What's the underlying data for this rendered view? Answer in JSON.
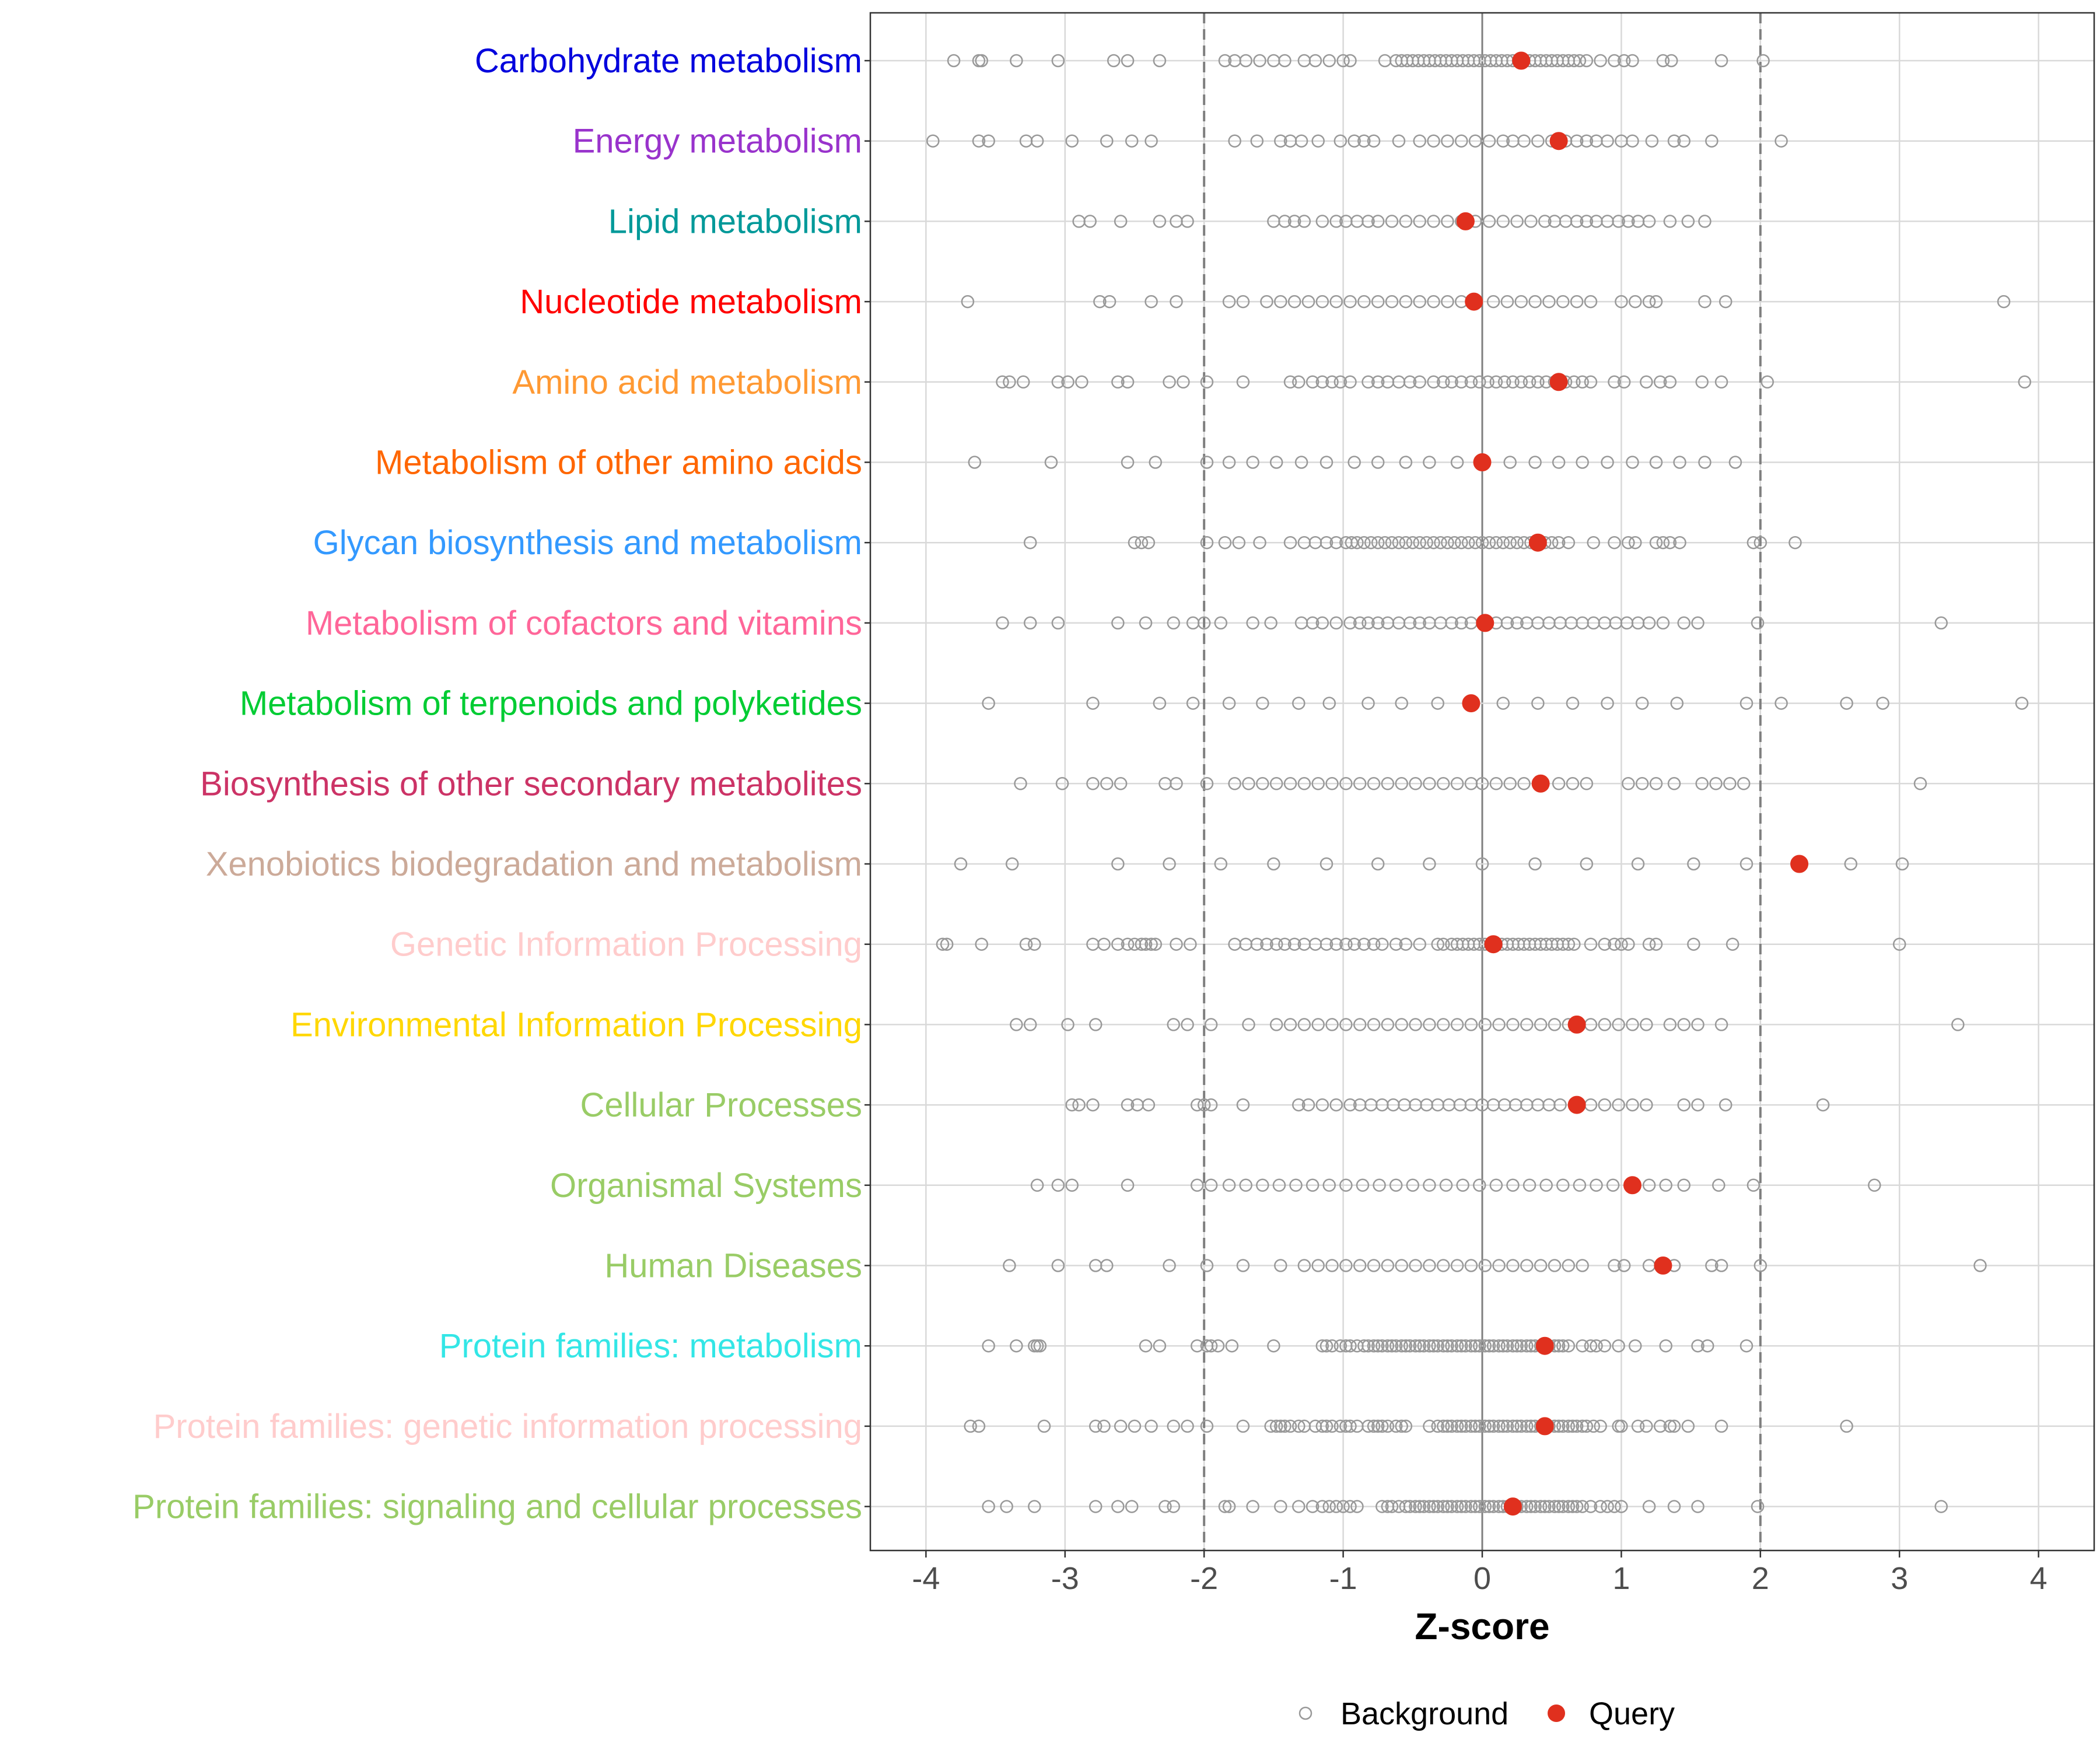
{
  "chart_data": {
    "type": "scatter",
    "xlabel": "Z-score",
    "ylabel": "",
    "xlim": [
      -4.4,
      4.4
    ],
    "x_ticks": [
      -4,
      -3,
      -2,
      -1,
      0,
      1,
      2,
      3,
      4
    ],
    "x_tick_labels": [
      "-4",
      "-3",
      "-2",
      "-1",
      "0",
      "1",
      "2",
      "3",
      "4"
    ],
    "threshold_lines": [
      -2,
      2
    ],
    "grid": true,
    "legend_position": "bottom",
    "legend": [
      {
        "name": "Background",
        "style": "hollow-circle",
        "color": "#999999"
      },
      {
        "name": "Query",
        "style": "filled-circle",
        "color": "#e0301e"
      }
    ],
    "categories": [
      {
        "label": "Carbohydrate metabolism",
        "color": "#0000dd",
        "query": 0.28,
        "background": [
          -3.8,
          -3.62,
          -3.6,
          -3.35,
          -3.05,
          -2.65,
          -2.55,
          -2.32,
          -1.85,
          -1.78,
          -1.7,
          -1.6,
          -1.5,
          -1.42,
          -1.28,
          -1.2,
          -1.1,
          -1.0,
          -0.95,
          -0.7,
          -0.62,
          -0.58,
          -0.54,
          -0.5,
          -0.46,
          -0.42,
          -0.38,
          -0.34,
          -0.3,
          -0.26,
          -0.22,
          -0.18,
          -0.14,
          -0.1,
          -0.06,
          -0.02,
          0.02,
          0.06,
          0.1,
          0.14,
          0.18,
          0.22,
          0.26,
          0.3,
          0.34,
          0.38,
          0.42,
          0.46,
          0.5,
          0.54,
          0.58,
          0.62,
          0.66,
          0.7,
          0.75,
          0.85,
          0.95,
          1.02,
          1.08,
          1.3,
          1.36,
          1.72,
          2.02
        ]
      },
      {
        "label": "Energy metabolism",
        "color": "#9933cc",
        "query": 0.55,
        "background": [
          -3.95,
          -3.62,
          -3.55,
          -3.28,
          -3.2,
          -2.95,
          -2.7,
          -2.52,
          -2.38,
          -1.78,
          -1.62,
          -1.45,
          -1.38,
          -1.3,
          -1.18,
          -1.02,
          -0.92,
          -0.85,
          -0.78,
          -0.6,
          -0.45,
          -0.35,
          -0.25,
          -0.15,
          -0.05,
          0.05,
          0.15,
          0.22,
          0.3,
          0.4,
          0.5,
          0.6,
          0.68,
          0.75,
          0.82,
          0.9,
          1.0,
          1.08,
          1.22,
          1.38,
          1.45,
          1.65,
          2.15
        ]
      },
      {
        "label": "Lipid metabolism",
        "color": "#009999",
        "query": -0.12,
        "background": [
          -2.9,
          -2.82,
          -2.6,
          -2.32,
          -2.2,
          -2.12,
          -1.5,
          -1.42,
          -1.35,
          -1.28,
          -1.15,
          -1.05,
          -0.98,
          -0.9,
          -0.82,
          -0.75,
          -0.65,
          -0.55,
          -0.45,
          -0.35,
          -0.25,
          -0.15,
          -0.05,
          0.05,
          0.15,
          0.25,
          0.35,
          0.45,
          0.52,
          0.6,
          0.68,
          0.75,
          0.82,
          0.9,
          0.98,
          1.05,
          1.12,
          1.2,
          1.35,
          1.48,
          1.6
        ]
      },
      {
        "label": "Nucleotide metabolism",
        "color": "#ff0000",
        "query": -0.06,
        "background": [
          -3.7,
          -2.75,
          -2.68,
          -2.38,
          -2.2,
          -1.82,
          -1.72,
          -1.55,
          -1.45,
          -1.35,
          -1.25,
          -1.15,
          -1.05,
          -0.95,
          -0.85,
          -0.75,
          -0.65,
          -0.55,
          -0.45,
          -0.35,
          -0.25,
          -0.15,
          -0.05,
          0.08,
          0.18,
          0.28,
          0.38,
          0.48,
          0.58,
          0.68,
          0.78,
          1.0,
          1.1,
          1.2,
          1.25,
          1.6,
          1.75,
          3.75
        ]
      },
      {
        "label": "Amino acid metabolism",
        "color": "#ff9933",
        "query": 0.55,
        "background": [
          -3.45,
          -3.4,
          -3.3,
          -3.05,
          -2.98,
          -2.88,
          -2.62,
          -2.55,
          -2.25,
          -2.15,
          -1.98,
          -1.72,
          -1.38,
          -1.32,
          -1.22,
          -1.15,
          -1.08,
          -1.02,
          -0.95,
          -0.82,
          -0.75,
          -0.68,
          -0.6,
          -0.52,
          -0.45,
          -0.35,
          -0.28,
          -0.22,
          -0.15,
          -0.08,
          -0.02,
          0.04,
          0.1,
          0.16,
          0.22,
          0.28,
          0.34,
          0.4,
          0.46,
          0.52,
          0.6,
          0.66,
          0.72,
          0.78,
          0.95,
          1.02,
          1.18,
          1.28,
          1.35,
          1.58,
          1.72,
          2.05,
          3.9
        ]
      },
      {
        "label": "Metabolism of other amino acids",
        "color": "#ff6600",
        "query": 0.0,
        "background": [
          -3.65,
          -3.1,
          -2.55,
          -2.35,
          -1.98,
          -1.82,
          -1.65,
          -1.48,
          -1.3,
          -1.12,
          -0.92,
          -0.75,
          -0.55,
          -0.38,
          -0.18,
          0.2,
          0.38,
          0.55,
          0.72,
          0.9,
          1.08,
          1.25,
          1.42,
          1.6,
          1.82
        ]
      },
      {
        "label": "Glycan biosynthesis and metabolism",
        "color": "#3399ff",
        "query": 0.4,
        "background": [
          -3.25,
          -2.5,
          -2.45,
          -2.4,
          -1.98,
          -1.85,
          -1.75,
          -1.6,
          -1.38,
          -1.28,
          -1.2,
          -1.12,
          -1.05,
          -0.98,
          -0.94,
          -0.9,
          -0.85,
          -0.8,
          -0.75,
          -0.7,
          -0.65,
          -0.6,
          -0.55,
          -0.5,
          -0.45,
          -0.4,
          -0.35,
          -0.3,
          -0.25,
          -0.2,
          -0.15,
          -0.1,
          -0.05,
          0.0,
          0.05,
          0.1,
          0.15,
          0.2,
          0.25,
          0.3,
          0.35,
          0.45,
          0.5,
          0.55,
          0.62,
          0.8,
          0.95,
          1.05,
          1.1,
          1.25,
          1.3,
          1.35,
          1.42,
          1.95,
          2.0,
          2.25
        ]
      },
      {
        "label": "Metabolism of cofactors and vitamins",
        "color": "#ff6699",
        "query": 0.02,
        "background": [
          -3.45,
          -3.25,
          -3.05,
          -2.62,
          -2.42,
          -2.22,
          -2.08,
          -2.0,
          -1.88,
          -1.65,
          -1.52,
          -1.3,
          -1.22,
          -1.15,
          -1.05,
          -0.95,
          -0.88,
          -0.82,
          -0.75,
          -0.68,
          -0.6,
          -0.52,
          -0.45,
          -0.38,
          -0.3,
          -0.22,
          -0.15,
          -0.08,
          0.1,
          0.18,
          0.25,
          0.32,
          0.4,
          0.48,
          0.56,
          0.64,
          0.72,
          0.8,
          0.88,
          0.96,
          1.04,
          1.12,
          1.2,
          1.3,
          1.45,
          1.55,
          1.98,
          3.3
        ]
      },
      {
        "label": "Metabolism of terpenoids and polyketides",
        "color": "#00cc33",
        "query": -0.08,
        "background": [
          -3.55,
          -2.8,
          -2.32,
          -2.08,
          -1.82,
          -1.58,
          -1.32,
          -1.1,
          -0.82,
          -0.58,
          -0.32,
          0.15,
          0.4,
          0.65,
          0.9,
          1.15,
          1.4,
          1.9,
          2.15,
          2.62,
          2.88,
          3.88
        ]
      },
      {
        "label": "Biosynthesis of other secondary metabolites",
        "color": "#cc3366",
        "query": 0.42,
        "background": [
          -3.32,
          -3.02,
          -2.8,
          -2.7,
          -2.6,
          -2.28,
          -2.2,
          -1.98,
          -1.78,
          -1.68,
          -1.58,
          -1.48,
          -1.38,
          -1.28,
          -1.18,
          -1.08,
          -0.98,
          -0.88,
          -0.78,
          -0.68,
          -0.58,
          -0.48,
          -0.38,
          -0.28,
          -0.18,
          -0.08,
          0.0,
          0.1,
          0.2,
          0.3,
          0.55,
          0.65,
          0.75,
          1.05,
          1.15,
          1.25,
          1.38,
          1.58,
          1.68,
          1.78,
          1.88,
          3.15
        ]
      },
      {
        "label": "Xenobiotics biodegradation and metabolism",
        "color": "#ccaa99",
        "query": 2.28,
        "background": [
          -3.75,
          -3.38,
          -2.62,
          -2.25,
          -1.88,
          -1.5,
          -1.12,
          -0.75,
          -0.38,
          0.0,
          0.38,
          0.75,
          1.12,
          1.52,
          1.9,
          2.65,
          3.02
        ]
      },
      {
        "label": "Genetic Information Processing",
        "color": "#ffcccc",
        "query": 0.08,
        "background": [
          -3.88,
          -3.85,
          -3.6,
          -3.28,
          -3.22,
          -2.8,
          -2.72,
          -2.62,
          -2.55,
          -2.5,
          -2.45,
          -2.42,
          -2.38,
          -2.35,
          -2.2,
          -2.1,
          -1.78,
          -1.7,
          -1.62,
          -1.55,
          -1.48,
          -1.42,
          -1.35,
          -1.28,
          -1.2,
          -1.12,
          -1.05,
          -0.98,
          -0.92,
          -0.85,
          -0.78,
          -0.72,
          -0.62,
          -0.55,
          -0.45,
          -0.32,
          -0.28,
          -0.22,
          -0.18,
          -0.14,
          -0.1,
          -0.06,
          -0.02,
          0.02,
          0.06,
          0.1,
          0.14,
          0.18,
          0.22,
          0.26,
          0.3,
          0.34,
          0.38,
          0.42,
          0.46,
          0.5,
          0.54,
          0.58,
          0.62,
          0.66,
          0.78,
          0.88,
          0.95,
          1.0,
          1.05,
          1.2,
          1.25,
          1.52,
          1.8,
          3.0
        ]
      },
      {
        "label": "Environmental Information Processing",
        "color": "#ffd700",
        "query": 0.68,
        "background": [
          -3.35,
          -3.25,
          -2.98,
          -2.78,
          -2.22,
          -2.12,
          -1.95,
          -1.68,
          -1.48,
          -1.38,
          -1.28,
          -1.18,
          -1.08,
          -0.98,
          -0.88,
          -0.78,
          -0.68,
          -0.58,
          -0.48,
          -0.38,
          -0.28,
          -0.18,
          -0.08,
          0.02,
          0.12,
          0.22,
          0.32,
          0.42,
          0.52,
          0.62,
          0.78,
          0.88,
          0.98,
          1.08,
          1.18,
          1.35,
          1.45,
          1.55,
          1.72,
          3.42
        ]
      },
      {
        "label": "Cellular Processes",
        "color": "#99cc66",
        "query": 0.68,
        "background": [
          -2.95,
          -2.9,
          -2.8,
          -2.55,
          -2.48,
          -2.4,
          -2.05,
          -2.0,
          -1.95,
          -1.72,
          -1.32,
          -1.25,
          -1.15,
          -1.05,
          -0.95,
          -0.88,
          -0.8,
          -0.72,
          -0.64,
          -0.56,
          -0.48,
          -0.4,
          -0.32,
          -0.24,
          -0.16,
          -0.08,
          0.0,
          0.08,
          0.16,
          0.24,
          0.32,
          0.4,
          0.48,
          0.56,
          0.78,
          0.88,
          0.98,
          1.08,
          1.18,
          1.45,
          1.55,
          1.75,
          2.45
        ]
      },
      {
        "label": "Organismal Systems",
        "color": "#99cc66",
        "query": 1.08,
        "background": [
          -3.2,
          -3.05,
          -2.95,
          -2.55,
          -2.05,
          -1.95,
          -1.82,
          -1.7,
          -1.58,
          -1.46,
          -1.34,
          -1.22,
          -1.1,
          -0.98,
          -0.86,
          -0.74,
          -0.62,
          -0.5,
          -0.38,
          -0.26,
          -0.14,
          -0.02,
          0.1,
          0.22,
          0.34,
          0.46,
          0.58,
          0.7,
          0.82,
          0.94,
          1.2,
          1.32,
          1.45,
          1.7,
          1.95,
          2.82
        ]
      },
      {
        "label": "Human Diseases",
        "color": "#99cc66",
        "query": 1.3,
        "background": [
          -3.4,
          -3.05,
          -2.78,
          -2.7,
          -2.25,
          -1.98,
          -1.72,
          -1.45,
          -1.28,
          -1.18,
          -1.08,
          -0.98,
          -0.88,
          -0.78,
          -0.68,
          -0.58,
          -0.48,
          -0.38,
          -0.28,
          -0.18,
          -0.08,
          0.02,
          0.12,
          0.22,
          0.32,
          0.42,
          0.52,
          0.62,
          0.72,
          0.95,
          1.02,
          1.2,
          1.38,
          1.65,
          1.72,
          2.0,
          3.58
        ]
      },
      {
        "label": "Protein families: metabolism",
        "color": "#33e6e6",
        "query": 0.45,
        "background": [
          -3.55,
          -3.35,
          -3.22,
          -3.2,
          -3.18,
          -2.42,
          -2.32,
          -2.05,
          -1.98,
          -1.95,
          -1.9,
          -1.8,
          -1.5,
          -1.15,
          -1.12,
          -1.08,
          -1.02,
          -0.98,
          -0.95,
          -0.9,
          -0.85,
          -0.82,
          -0.78,
          -0.75,
          -0.72,
          -0.68,
          -0.65,
          -0.62,
          -0.58,
          -0.55,
          -0.52,
          -0.48,
          -0.45,
          -0.42,
          -0.38,
          -0.35,
          -0.32,
          -0.28,
          -0.25,
          -0.22,
          -0.18,
          -0.15,
          -0.12,
          -0.08,
          -0.05,
          -0.02,
          0.02,
          0.05,
          0.08,
          0.12,
          0.15,
          0.18,
          0.22,
          0.25,
          0.28,
          0.32,
          0.35,
          0.38,
          0.42,
          0.48,
          0.52,
          0.55,
          0.58,
          0.62,
          0.72,
          0.78,
          0.82,
          0.88,
          0.98,
          1.1,
          1.32,
          1.55,
          1.62,
          1.9
        ]
      },
      {
        "label": "Protein families: genetic information processing",
        "color": "#ffcccc",
        "query": 0.45,
        "background": [
          -3.68,
          -3.62,
          -3.15,
          -2.78,
          -2.72,
          -2.6,
          -2.5,
          -2.38,
          -2.22,
          -2.12,
          -1.98,
          -1.72,
          -1.52,
          -1.48,
          -1.45,
          -1.42,
          -1.38,
          -1.32,
          -1.28,
          -1.2,
          -1.15,
          -1.12,
          -1.08,
          -1.02,
          -0.98,
          -0.95,
          -0.9,
          -0.82,
          -0.78,
          -0.75,
          -0.72,
          -0.68,
          -0.62,
          -0.58,
          -0.55,
          -0.38,
          -0.32,
          -0.28,
          -0.25,
          -0.22,
          -0.18,
          -0.15,
          -0.12,
          -0.08,
          -0.05,
          -0.02,
          0.02,
          0.05,
          0.08,
          0.12,
          0.15,
          0.18,
          0.22,
          0.25,
          0.28,
          0.32,
          0.35,
          0.38,
          0.42,
          0.48,
          0.52,
          0.55,
          0.58,
          0.62,
          0.65,
          0.68,
          0.72,
          0.75,
          0.8,
          0.85,
          0.98,
          1.0,
          1.12,
          1.18,
          1.28,
          1.35,
          1.38,
          1.48,
          1.72,
          2.62
        ]
      },
      {
        "label": "Protein families: signaling and cellular processes",
        "color": "#99cc66",
        "query": 0.22,
        "background": [
          -3.55,
          -3.42,
          -3.22,
          -2.78,
          -2.62,
          -2.52,
          -2.28,
          -2.22,
          -1.85,
          -1.82,
          -1.65,
          -1.45,
          -1.32,
          -1.22,
          -1.15,
          -1.1,
          -1.05,
          -1.0,
          -0.95,
          -0.9,
          -0.72,
          -0.68,
          -0.65,
          -0.6,
          -0.55,
          -0.52,
          -0.48,
          -0.45,
          -0.42,
          -0.38,
          -0.35,
          -0.32,
          -0.28,
          -0.25,
          -0.22,
          -0.18,
          -0.15,
          -0.12,
          -0.08,
          -0.05,
          -0.02,
          0.02,
          0.05,
          0.08,
          0.12,
          0.15,
          0.18,
          0.25,
          0.28,
          0.32,
          0.35,
          0.38,
          0.42,
          0.45,
          0.48,
          0.52,
          0.55,
          0.58,
          0.62,
          0.65,
          0.68,
          0.72,
          0.78,
          0.85,
          0.9,
          0.95,
          1.0,
          1.2,
          1.38,
          1.55,
          1.98,
          3.3
        ]
      }
    ]
  }
}
